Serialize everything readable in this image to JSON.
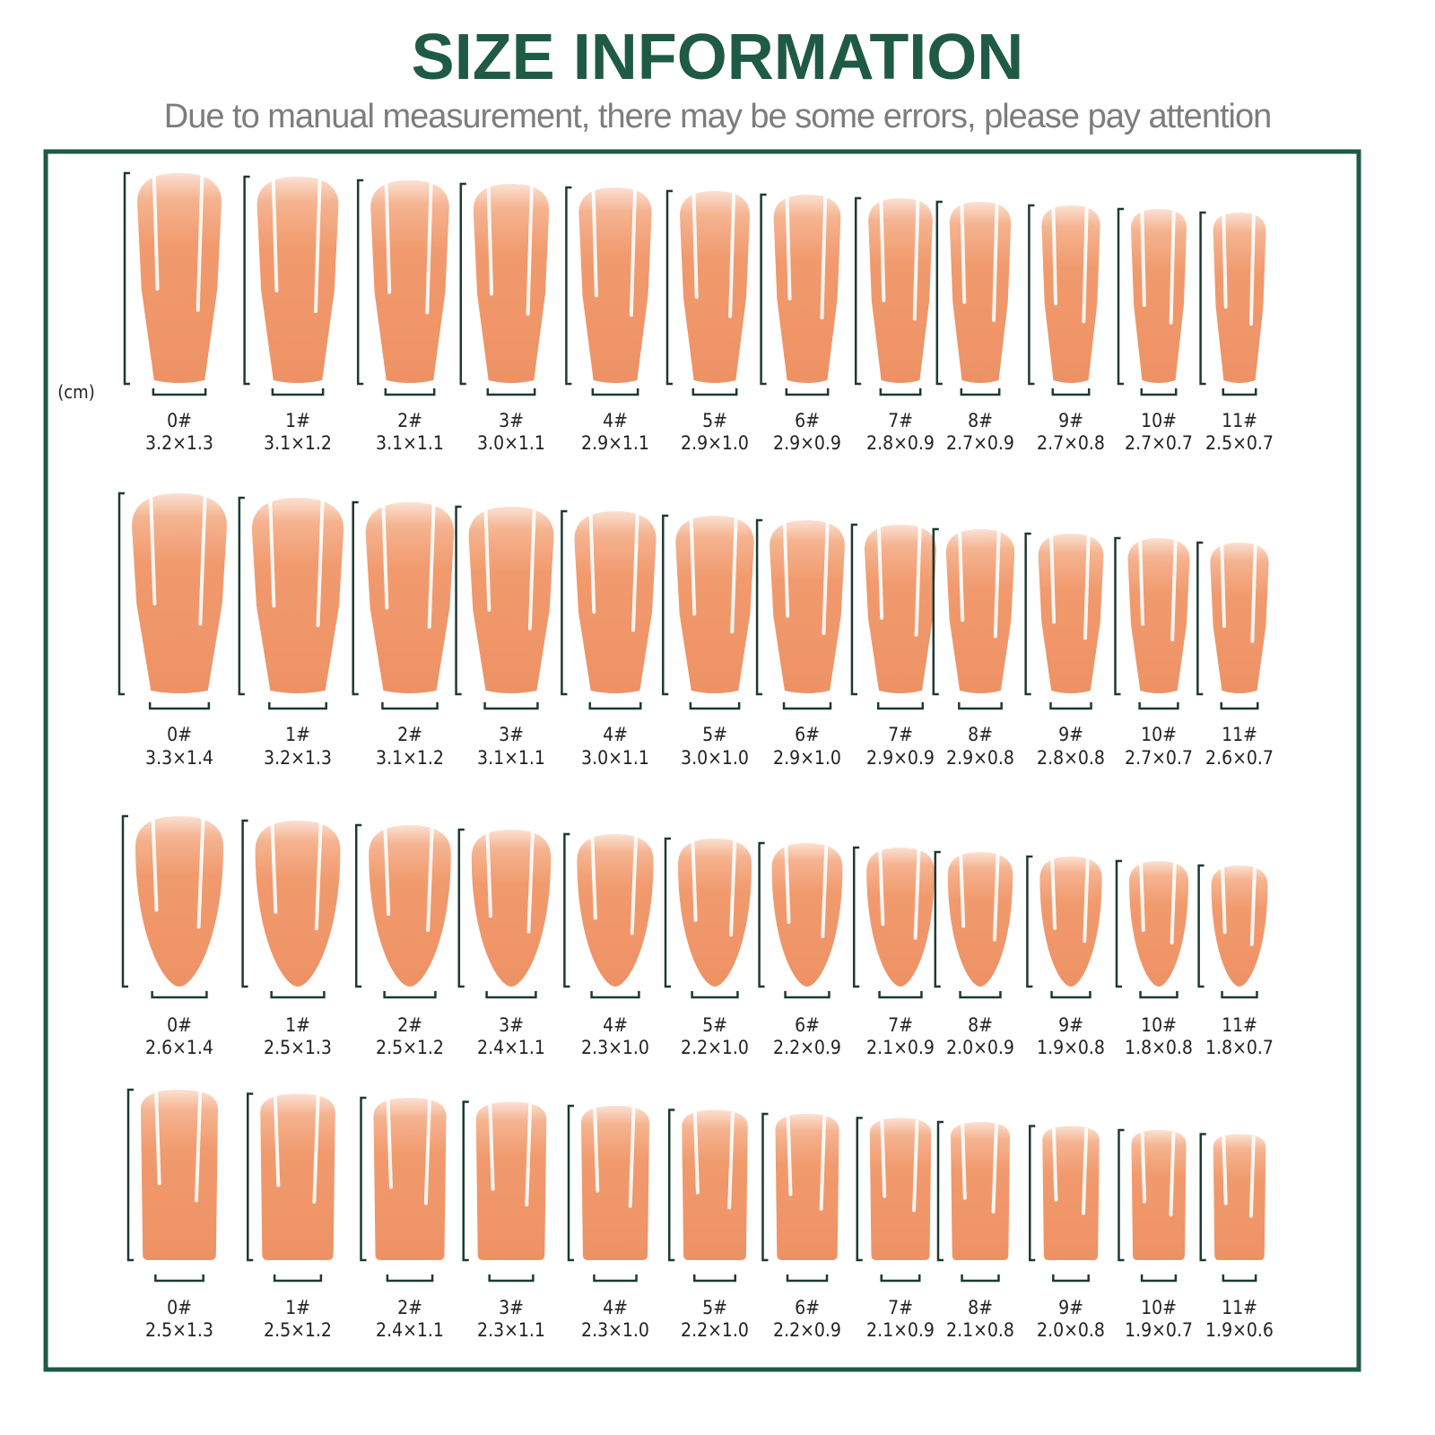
{
  "header": {
    "title": "SIZE INFORMATION",
    "subtitle": "Due to manual measurement, there may be some errors, please pay attention"
  },
  "unit": "(cm)",
  "rows": [
    {
      "items": [
        {
          "label": "0#",
          "size": "3.2×1.3"
        },
        {
          "label": "1#",
          "size": "3.1×1.2"
        },
        {
          "label": "2#",
          "size": "3.1×1.1"
        },
        {
          "label": "3#",
          "size": "3.0×1.1"
        },
        {
          "label": "4#",
          "size": "2.9×1.1"
        },
        {
          "label": "5#",
          "size": "2.9×1.0"
        },
        {
          "label": "6#",
          "size": "2.9×0.9"
        },
        {
          "label": "7#",
          "size": "2.8×0.9"
        },
        {
          "label": "8#",
          "size": "2.7×0.9"
        },
        {
          "label": "9#",
          "size": "2.7×0.8"
        },
        {
          "label": "10#",
          "size": "2.7×0.7"
        },
        {
          "label": "11#",
          "size": "2.5×0.7"
        }
      ]
    },
    {
      "items": [
        {
          "label": "0#",
          "size": "3.3×1.4"
        },
        {
          "label": "1#",
          "size": "3.2×1.3"
        },
        {
          "label": "2#",
          "size": "3.1×1.2"
        },
        {
          "label": "3#",
          "size": "3.1×1.1"
        },
        {
          "label": "4#",
          "size": "3.0×1.1"
        },
        {
          "label": "5#",
          "size": "3.0×1.0"
        },
        {
          "label": "6#",
          "size": "2.9×1.0"
        },
        {
          "label": "7#",
          "size": "2.9×0.9"
        },
        {
          "label": "8#",
          "size": "2.9×0.8"
        },
        {
          "label": "9#",
          "size": "2.8×0.8"
        },
        {
          "label": "10#",
          "size": "2.7×0.7"
        },
        {
          "label": "11#",
          "size": "2.6×0.7"
        }
      ]
    },
    {
      "items": [
        {
          "label": "0#",
          "size": "2.6×1.4"
        },
        {
          "label": "1#",
          "size": "2.5×1.3"
        },
        {
          "label": "2#",
          "size": "2.5×1.2"
        },
        {
          "label": "3#",
          "size": "2.4×1.1"
        },
        {
          "label": "4#",
          "size": "2.3×1.0"
        },
        {
          "label": "5#",
          "size": "2.2×1.0"
        },
        {
          "label": "6#",
          "size": "2.2×0.9"
        },
        {
          "label": "7#",
          "size": "2.1×0.9"
        },
        {
          "label": "8#",
          "size": "2.0×0.9"
        },
        {
          "label": "9#",
          "size": "1.9×0.8"
        },
        {
          "label": "10#",
          "size": "1.8×0.8"
        },
        {
          "label": "11#",
          "size": "1.8×0.7"
        }
      ]
    },
    {
      "items": [
        {
          "label": "0#",
          "size": "2.5×1.3"
        },
        {
          "label": "1#",
          "size": "2.5×1.2"
        },
        {
          "label": "2#",
          "size": "2.4×1.1"
        },
        {
          "label": "3#",
          "size": "2.3×1.1"
        },
        {
          "label": "4#",
          "size": "2.3×1.0"
        },
        {
          "label": "5#",
          "size": "2.2×1.0"
        },
        {
          "label": "6#",
          "size": "2.2×0.9"
        },
        {
          "label": "7#",
          "size": "2.1×0.9"
        },
        {
          "label": "8#",
          "size": "2.1×0.8"
        },
        {
          "label": "9#",
          "size": "2.0×0.8"
        },
        {
          "label": "10#",
          "size": "1.9×0.7"
        },
        {
          "label": "11#",
          "size": "1.9×0.6"
        }
      ]
    }
  ]
}
